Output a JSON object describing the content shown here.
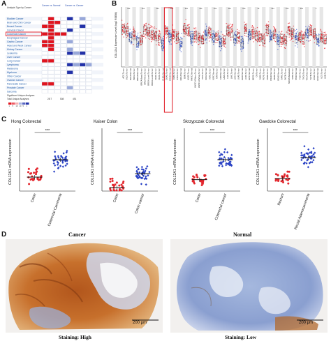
{
  "panels": {
    "A": "A",
    "B": "B",
    "C": "C",
    "D": "D"
  },
  "panelA": {
    "header_left": "Analysis Type by Cancer",
    "header_cols": [
      "Cancer vs. Normal",
      "Cancer vs. Cancer"
    ],
    "rows": [
      "Bladder Cancer",
      "Brain and CNS Cancer",
      "Breast Cancer",
      "Cervical Cancer",
      "Colorectal Cancer",
      "Esophageal Cancer",
      "Gastric Cancer",
      "Head and Neck Cancer",
      "Kidney Cancer",
      "Leukemia",
      "Liver Cancer",
      "Lung Cancer",
      "Lymphoma",
      "Melanoma",
      "Myeloma",
      "Other Cancer",
      "Ovarian Cancer",
      "Pancreatic Cancer",
      "Prostate Cancer",
      "Sarcoma"
    ],
    "footer_rows": [
      "Significant Unique Analyses",
      "Total Unique Analyses"
    ],
    "footer_values": [
      "28 7",
      "508 ",
      "491"
    ],
    "legend": [
      "1",
      "5",
      "10",
      "10",
      "5",
      "1"
    ],
    "colors": {
      "red": "#e0141e",
      "blue": "#2231a8",
      "pink": "#f3a8ab",
      "lightblue": "#98a8da"
    }
  },
  "panelB": {
    "ylabel": "COL12A1 Expression Level (log2 RSEM)",
    "categories": [
      "ACC.Tumor",
      "BLCA.Tumor",
      "BLCA.Normal",
      "BRCA.Tumor",
      "BRCA.Normal",
      "BRCA-Basal.Tumor",
      "BRCA-Her2.Tumor",
      "BRCA-LumA.Tumor",
      "BRCA-LumB.Tumor",
      "CESC.Tumor",
      "CHOL.Tumor",
      "CHOL.Normal",
      "COAD.Tumor",
      "COAD.Normal",
      "DLBC.Tumor",
      "ESCA.Tumor",
      "ESCA.Normal",
      "GBM.Tumor",
      "HNSC.Tumor",
      "HNSC.Normal",
      "HNSC-HPVpos.Tumor",
      "HNSC-HPVneg.Tumor",
      "KICH.Tumor",
      "KICH.Normal",
      "KIRC.Tumor",
      "KIRC.Normal",
      "KIRP.Tumor",
      "KIRP.Normal",
      "LAML.Tumor",
      "LGG.Tumor",
      "LIHC.Tumor",
      "LIHC.Normal",
      "LUAD.Tumor",
      "LUAD.Normal",
      "LUSC.Tumor",
      "LUSC.Normal",
      "MESO.Tumor",
      "OV.Tumor",
      "PAAD.Tumor",
      "PCPG.Tumor",
      "PRAD.Tumor",
      "PRAD.Normal",
      "READ.Tumor",
      "READ.Normal",
      "SARC.Tumor",
      "SKCM.Tumor",
      "SKCM.Metastasis",
      "STAD.Tumor",
      "STAD.Normal",
      "TGCT.Tumor",
      "THCA.Tumor",
      "THCA.Normal",
      "THYM.Tumor",
      "UCEC.Tumor",
      "UCEC.Normal",
      "UCS.Tumor",
      "UVM.Tumor"
    ],
    "significance": [
      "***",
      "***",
      "***",
      "***",
      "***",
      "***",
      "***",
      "***",
      "***",
      "**",
      "***",
      "***",
      "***",
      "*",
      "***"
    ]
  },
  "panelC": {
    "ylabel": "COL12A1 mRNA expression",
    "charts": [
      {
        "title": "Hong Colorectal",
        "groups": [
          "Colon",
          "Colorectal Carcinoma"
        ],
        "sig": "***"
      },
      {
        "title": "Kaiser Colon",
        "groups": [
          "Colon",
          "Colon cancer"
        ],
        "sig": "***"
      },
      {
        "title": "Skrzypczak Colorectal",
        "groups": [
          "Colon",
          "Colorectal cancer"
        ],
        "sig": "***"
      },
      {
        "title": "Gaedcke Colorectal",
        "groups": [
          "Rectum",
          "Rectal Adenocarcinoma"
        ],
        "sig": "***"
      }
    ]
  },
  "panelD": {
    "cancer_title": "Cancer",
    "normal_title": "Normal",
    "cancer_staining": "Staining: High",
    "normal_staining": "Staining: Low",
    "scalebar": "200 μm"
  },
  "chart_data": [
    {
      "type": "scatter",
      "title": "Hong Colorectal",
      "ylabel": "COL12A1 mRNA expression",
      "categories": [
        "Colon",
        "Colorectal Carcinoma"
      ],
      "ylim": [
        0,
        9
      ],
      "yticks": [],
      "series": [
        {
          "values": [
            2.0,
            4.5
          ]
        }
      ]
    },
    {
      "type": "scatter",
      "title": "Kaiser Colon",
      "ylabel": "COL12A1 mRNA expression",
      "categories": [
        "Colon",
        "Colon cancer"
      ],
      "ylim": [
        0,
        9
      ],
      "yticks": [],
      "series": [
        {
          "values": [
            0.5,
            2.5
          ]
        }
      ]
    },
    {
      "type": "scatter",
      "title": "Skrzypczak Colorectal",
      "ylabel": "COL12A1 mRNA expression",
      "categories": [
        "Colon",
        "Colorectal cancer"
      ],
      "ylim": [
        -2,
        9
      ],
      "yticks": [],
      "series": [
        {
          "values": [
            0.0,
            3.5
          ]
        }
      ]
    },
    {
      "type": "scatter",
      "title": "Gaedcke Colorectal",
      "ylabel": "COL12A1 mRNA expression",
      "categories": [
        "Rectum",
        "Rectal Adenocarcinoma"
      ],
      "ylim": [
        0,
        9
      ],
      "yticks": [],
      "series": [
        {
          "values": [
            1.8,
            4.8
          ]
        }
      ]
    }
  ]
}
